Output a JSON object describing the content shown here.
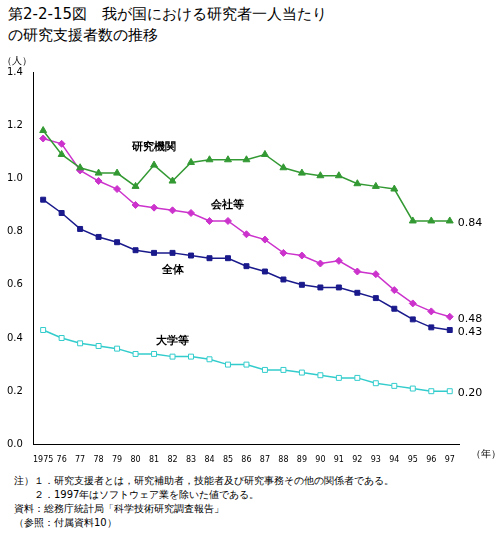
{
  "chart_data": {
    "type": "line",
    "title": "第2-2-15図　我が国における研究者一人当たりの研究支援者数の推移",
    "y_label": "（人）",
    "x_label": "（年）",
    "categories": [
      "1975",
      "76",
      "77",
      "78",
      "79",
      "80",
      "81",
      "82",
      "83",
      "84",
      "85",
      "86",
      "87",
      "88",
      "89",
      "90",
      "91",
      "92",
      "93",
      "94",
      "95",
      "96",
      "97"
    ],
    "series": [
      {
        "name": "研究機関",
        "color": "#339933",
        "marker": "triangle",
        "values": [
          1.18,
          1.09,
          1.04,
          1.02,
          1.02,
          0.97,
          1.05,
          0.99,
          1.06,
          1.07,
          1.07,
          1.07,
          1.09,
          1.04,
          1.02,
          1.01,
          1.01,
          0.98,
          0.97,
          0.96,
          0.84,
          0.84,
          0.84
        ],
        "value_labels": [
          null,
          null,
          null,
          null,
          null,
          null,
          null,
          null,
          null,
          null,
          null,
          null,
          null,
          null,
          null,
          null,
          null,
          null,
          null,
          null,
          null,
          null,
          "0.84"
        ]
      },
      {
        "name": "会社等",
        "color": "#cc33cc",
        "marker": "diamond",
        "values": [
          1.15,
          1.13,
          1.03,
          0.99,
          0.96,
          0.9,
          0.89,
          0.88,
          0.87,
          0.84,
          0.84,
          0.79,
          0.77,
          0.72,
          0.71,
          0.68,
          0.69,
          0.65,
          0.64,
          0.58,
          0.53,
          0.5,
          0.48
        ],
        "value_labels": [
          null,
          null,
          null,
          null,
          null,
          null,
          null,
          null,
          null,
          null,
          null,
          null,
          null,
          null,
          null,
          null,
          null,
          null,
          null,
          null,
          null,
          null,
          "0.48"
        ]
      },
      {
        "name": "全体",
        "color": "#1a1a8c",
        "marker": "square",
        "values": [
          0.92,
          0.87,
          0.81,
          0.78,
          0.76,
          0.73,
          0.72,
          0.72,
          0.71,
          0.7,
          0.7,
          0.67,
          0.65,
          0.62,
          0.6,
          0.59,
          0.59,
          0.57,
          0.55,
          0.51,
          0.47,
          0.44,
          0.43
        ],
        "value_labels": [
          null,
          null,
          null,
          null,
          null,
          null,
          null,
          null,
          null,
          null,
          null,
          null,
          null,
          null,
          null,
          null,
          null,
          null,
          null,
          null,
          null,
          null,
          "0.43"
        ]
      },
      {
        "name": "大学等",
        "color": "#33cccc",
        "marker": "open_square",
        "values": [
          0.43,
          0.4,
          0.38,
          0.37,
          0.36,
          0.34,
          0.34,
          0.33,
          0.33,
          0.32,
          0.3,
          0.3,
          0.28,
          0.28,
          0.27,
          0.26,
          0.25,
          0.25,
          0.23,
          0.22,
          0.21,
          0.2,
          0.2
        ],
        "value_labels": [
          null,
          null,
          null,
          null,
          null,
          null,
          null,
          null,
          null,
          null,
          null,
          null,
          null,
          null,
          null,
          null,
          null,
          null,
          null,
          null,
          null,
          null,
          "0.20"
        ]
      }
    ],
    "ylim": [
      0,
      1.4
    ],
    "yticks": [
      {
        "value": 0,
        "label": "0.0"
      },
      0.2,
      0.4,
      0.6,
      0.8,
      {
        "value": 1,
        "label": "1.0"
      },
      1.2,
      1.4
    ],
    "grid": false,
    "annotations": [
      "注）１．研究支援者とは，研究補助者，技能者及び研究事務その他の関係者である。",
      "　　２．1997年はソフトウェア業を除いた値である。",
      "資料：総務庁統計局「科学技術研究調査報告」",
      "（参照：付属資料10）"
    ]
  }
}
